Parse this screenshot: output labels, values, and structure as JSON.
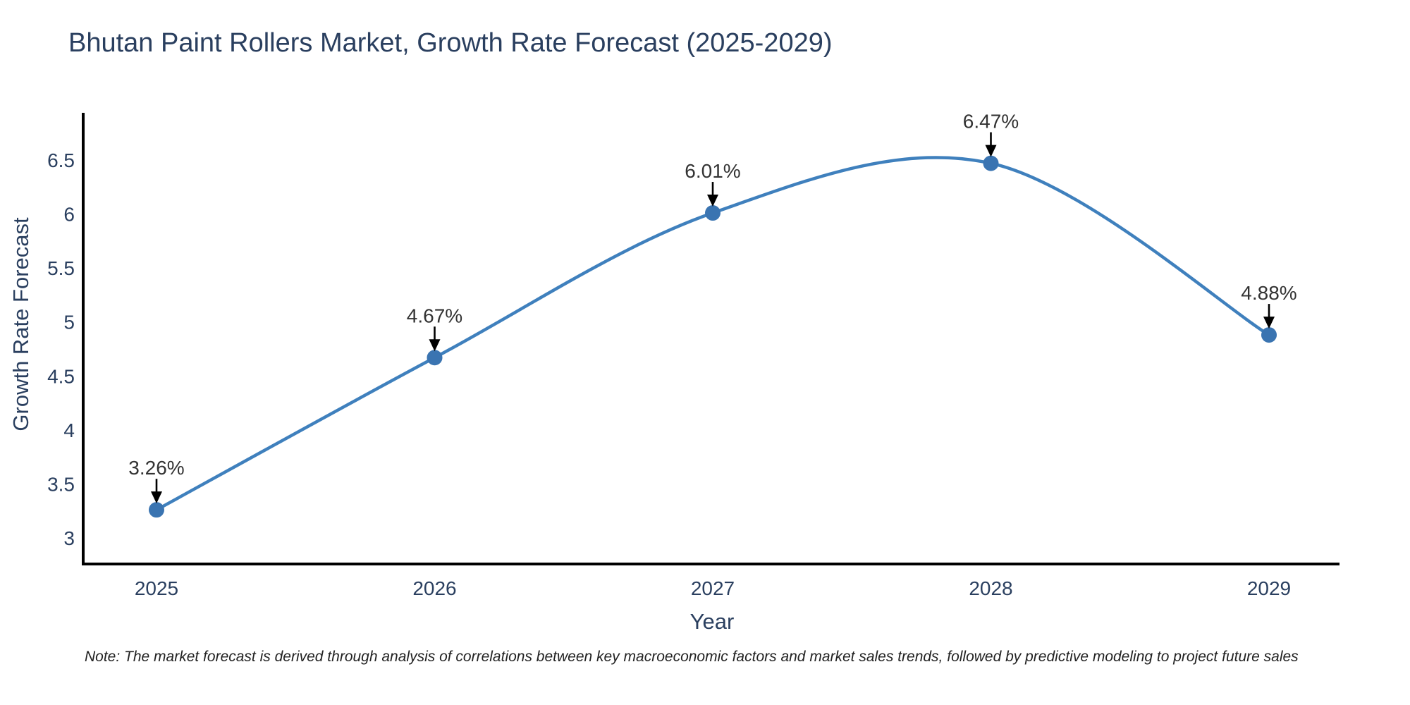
{
  "chart_data": {
    "type": "line",
    "title": "Bhutan Paint Rollers Market, Growth Rate Forecast (2025-2029)",
    "xlabel": "Year",
    "ylabel": "Growth Rate Forecast",
    "categories": [
      "2025",
      "2026",
      "2027",
      "2028",
      "2029"
    ],
    "series": [
      {
        "name": "Growth Rate Forecast",
        "values": [
          3.26,
          4.67,
          6.01,
          6.47,
          4.88
        ]
      }
    ],
    "point_labels": [
      "3.26%",
      "4.67%",
      "6.01%",
      "6.47%",
      "4.88%"
    ],
    "y_ticks": [
      "3",
      "3.5",
      "4",
      "4.5",
      "5",
      "5.5",
      "6",
      "6.5"
    ],
    "ylim": [
      2.76,
      6.94
    ],
    "grid": false,
    "legend_position": "none",
    "line_shape": "spline",
    "annotation_style": "black-down-arrow",
    "colors": {
      "line": "#3f80bd",
      "marker": "#3a74b1",
      "axis": "#000000",
      "text": "#2a3f5f",
      "annotation": "#333333"
    }
  },
  "note": "Note: The market forecast is derived through analysis of correlations between key macroeconomic factors and market sales trends, followed by predictive modeling to project future sales"
}
